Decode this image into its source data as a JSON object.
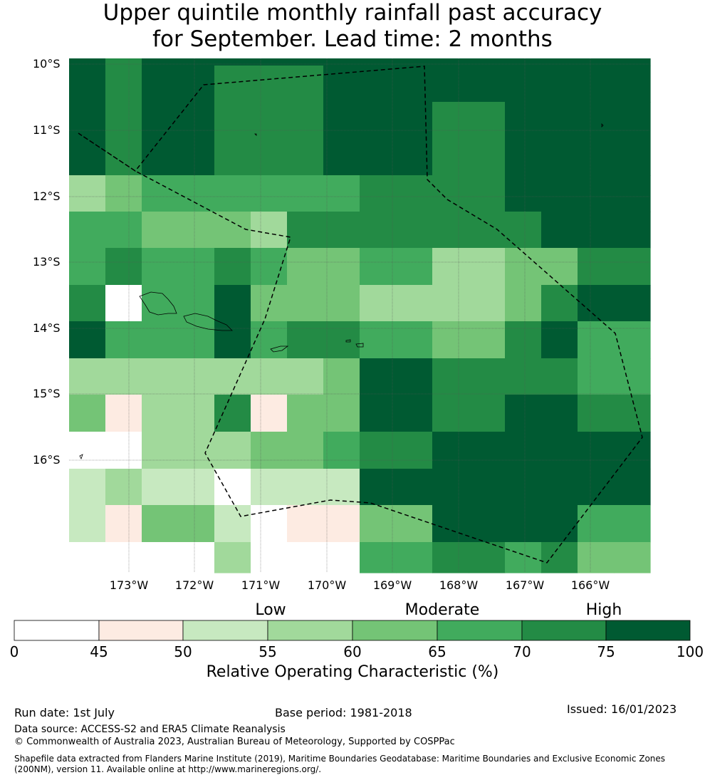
{
  "title_line1": "Upper quintile monthly rainfall past accuracy",
  "title_line2": "for September. Lead time: 2 months",
  "lat_labels": [
    "10°S",
    "11°S",
    "12°S",
    "13°S",
    "14°S",
    "15°S",
    "16°S"
  ],
  "lon_labels": [
    "173°W",
    "172°W",
    "171°W",
    "170°W",
    "169°W",
    "168°W",
    "167°W",
    "166°W"
  ],
  "category_labels": [
    "Low",
    "Moderate",
    "High"
  ],
  "colorbar": {
    "ticks": [
      "0",
      "45",
      "50",
      "55",
      "60",
      "65",
      "70",
      "75",
      "100"
    ],
    "colors": [
      "#ffffff",
      "#fdebe2",
      "#c7e9c0",
      "#a1d99b",
      "#74c476",
      "#41ab5d",
      "#238b45",
      "#005a32"
    ],
    "title": "Relative Operating Characteristic (%)"
  },
  "footer": {
    "run_date": "Run date: 1st July",
    "base_period": "Base period: 1981-2018",
    "issued": "Issued: 16/01/2023",
    "data_source": "Data source: ACCESS-S2 and ERA5 Climate Reanalysis",
    "copyright": "© Commonwealth of Australia 2023, Australian Bureau of Meteorology, Supported by COSPPac",
    "shapefile_line1": "Shapefile data extracted from Flanders Marine Institute (2019), Maritime Boundaries Geodatabase: Maritime Boundaries and Exclusive Economic Zones",
    "shapefile_line2": "(200NM), version 11. Available online at http://www.marineregions.org/."
  },
  "chart_data": {
    "type": "heatmap",
    "value_classes": "0=<45, 1=45-50, 2=50-55, 3=55-60, 4=60-65, 5=65-70, 6=70-75, 7=75-100",
    "grid_rows_north_to_south": [
      [
        7,
        6,
        7,
        7,
        7,
        7,
        7,
        7,
        7,
        7,
        7,
        7,
        7,
        7,
        7,
        7
      ],
      [
        7,
        6,
        7,
        7,
        6,
        6,
        6,
        7,
        7,
        7,
        7,
        7,
        7,
        7,
        7,
        7
      ],
      [
        7,
        6,
        7,
        7,
        6,
        6,
        6,
        7,
        7,
        7,
        6,
        6,
        7,
        7,
        7,
        7
      ],
      [
        3,
        4,
        5,
        5,
        5,
        5,
        5,
        5,
        6,
        6,
        6,
        6,
        7,
        7,
        7,
        7
      ],
      [
        5,
        5,
        4,
        4,
        4,
        3,
        6,
        6,
        6,
        6,
        6,
        6,
        6,
        7,
        7,
        7
      ],
      [
        5,
        6,
        5,
        5,
        6,
        5,
        4,
        4,
        5,
        5,
        3,
        3,
        4,
        4,
        6,
        6
      ],
      [
        6,
        0,
        5,
        5,
        7,
        4,
        4,
        4,
        3,
        3,
        3,
        3,
        4,
        6,
        7,
        7
      ],
      [
        7,
        5,
        5,
        5,
        7,
        5,
        6,
        6,
        5,
        5,
        4,
        4,
        6,
        7,
        5,
        5
      ],
      [
        3,
        3,
        3,
        3,
        3,
        3,
        3,
        4,
        7,
        7,
        6,
        6,
        6,
        6,
        5,
        5
      ],
      [
        4,
        1,
        3,
        3,
        6,
        1,
        4,
        4,
        7,
        7,
        6,
        6,
        7,
        7,
        6,
        6
      ],
      [
        0,
        0,
        3,
        3,
        3,
        4,
        4,
        5,
        6,
        6,
        7,
        7,
        7,
        7,
        7,
        7
      ],
      [
        2,
        3,
        2,
        2,
        0,
        2,
        2,
        2,
        7,
        7,
        7,
        7,
        7,
        7,
        7,
        7
      ],
      [
        2,
        1,
        4,
        4,
        2,
        0,
        1,
        1,
        4,
        4,
        7,
        7,
        7,
        7,
        5,
        5
      ],
      [
        0,
        0,
        0,
        0,
        3,
        0,
        0,
        0,
        5,
        5,
        6,
        6,
        5,
        6,
        4,
        4
      ]
    ]
  }
}
